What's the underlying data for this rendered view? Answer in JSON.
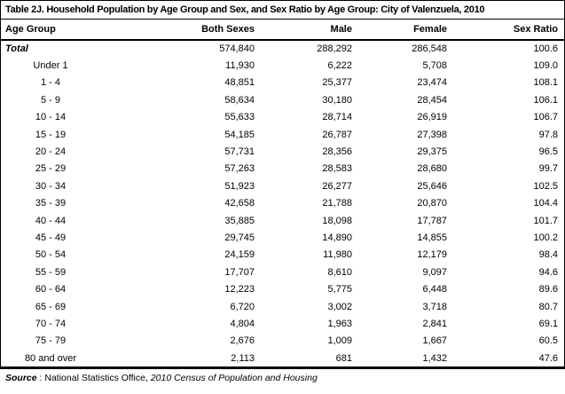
{
  "colors": {
    "text": "#000000",
    "border": "#000000",
    "background": "#ffffff"
  },
  "table": {
    "title": "Table 2J. Household Population by Age Group and Sex, and Sex Ratio by Age Group: City of Valenzuela, 2010",
    "columns": [
      "Age Group",
      "Both Sexes",
      "Male",
      "Female",
      "Sex Ratio"
    ],
    "total_row": {
      "label": "Total",
      "both_sexes": "574,840",
      "male": "288,292",
      "female": "286,548",
      "sex_ratio": "100.6"
    },
    "rows": [
      {
        "age_group": "Under 1",
        "both_sexes": "11,930",
        "male": "6,222",
        "female": "5,708",
        "sex_ratio": "109.0"
      },
      {
        "age_group": "1 - 4",
        "both_sexes": "48,851",
        "male": "25,377",
        "female": "23,474",
        "sex_ratio": "108.1"
      },
      {
        "age_group": "5 - 9",
        "both_sexes": "58,634",
        "male": "30,180",
        "female": "28,454",
        "sex_ratio": "106.1"
      },
      {
        "age_group": "10 - 14",
        "both_sexes": "55,633",
        "male": "28,714",
        "female": "26,919",
        "sex_ratio": "106.7"
      },
      {
        "age_group": "15 - 19",
        "both_sexes": "54,185",
        "male": "26,787",
        "female": "27,398",
        "sex_ratio": "97.8"
      },
      {
        "age_group": "20 - 24",
        "both_sexes": "57,731",
        "male": "28,356",
        "female": "29,375",
        "sex_ratio": "96.5"
      },
      {
        "age_group": "25 - 29",
        "both_sexes": "57,263",
        "male": "28,583",
        "female": "28,680",
        "sex_ratio": "99.7"
      },
      {
        "age_group": "30 - 34",
        "both_sexes": "51,923",
        "male": "26,277",
        "female": "25,646",
        "sex_ratio": "102.5"
      },
      {
        "age_group": "35 - 39",
        "both_sexes": "42,658",
        "male": "21,788",
        "female": "20,870",
        "sex_ratio": "104.4"
      },
      {
        "age_group": "40 - 44",
        "both_sexes": "35,885",
        "male": "18,098",
        "female": "17,787",
        "sex_ratio": "101.7"
      },
      {
        "age_group": "45 - 49",
        "both_sexes": "29,745",
        "male": "14,890",
        "female": "14,855",
        "sex_ratio": "100.2"
      },
      {
        "age_group": "50 - 54",
        "both_sexes": "24,159",
        "male": "11,980",
        "female": "12,179",
        "sex_ratio": "98.4"
      },
      {
        "age_group": "55 - 59",
        "both_sexes": "17,707",
        "male": "8,610",
        "female": "9,097",
        "sex_ratio": "94.6"
      },
      {
        "age_group": "60 - 64",
        "both_sexes": "12,223",
        "male": "5,775",
        "female": "6,448",
        "sex_ratio": "89.6"
      },
      {
        "age_group": "65 - 69",
        "both_sexes": "6,720",
        "male": "3,002",
        "female": "3,718",
        "sex_ratio": "80.7"
      },
      {
        "age_group": "70 - 74",
        "both_sexes": "4,804",
        "male": "1,963",
        "female": "2,841",
        "sex_ratio": "69.1"
      },
      {
        "age_group": "75 - 79",
        "both_sexes": "2,676",
        "male": "1,009",
        "female": "1,667",
        "sex_ratio": "60.5"
      },
      {
        "age_group": "80 and over",
        "both_sexes": "2,113",
        "male": "681",
        "female": "1,432",
        "sex_ratio": "47.6"
      }
    ],
    "source": {
      "label": "Source",
      "separator": " : ",
      "text": "National Statistics Office, ",
      "citation": "2010 Census of Population and Housing"
    }
  },
  "chart_data": {
    "type": "table",
    "title": "Table 2J. Household Population by Age Group and Sex, and Sex Ratio by Age Group: City of Valenzuela, 2010",
    "categories": [
      "Total",
      "Under 1",
      "1 - 4",
      "5 - 9",
      "10 - 14",
      "15 - 19",
      "20 - 24",
      "25 - 29",
      "30 - 34",
      "35 - 39",
      "40 - 44",
      "45 - 49",
      "50 - 54",
      "55 - 59",
      "60 - 64",
      "65 - 69",
      "70 - 74",
      "75 - 79",
      "80 and over"
    ],
    "series": [
      {
        "name": "Both Sexes",
        "values": [
          574840,
          11930,
          48851,
          58634,
          55633,
          54185,
          57731,
          57263,
          51923,
          42658,
          35885,
          29745,
          24159,
          17707,
          12223,
          6720,
          4804,
          2676,
          2113
        ]
      },
      {
        "name": "Male",
        "values": [
          288292,
          6222,
          25377,
          30180,
          28714,
          26787,
          28356,
          28583,
          26277,
          21788,
          18098,
          14890,
          11980,
          8610,
          5775,
          3002,
          1963,
          1009,
          681
        ]
      },
      {
        "name": "Female",
        "values": [
          286548,
          5708,
          23474,
          28454,
          26919,
          27398,
          29375,
          28680,
          25646,
          20870,
          17787,
          14855,
          12179,
          9097,
          6448,
          3718,
          2841,
          1667,
          1432
        ]
      },
      {
        "name": "Sex Ratio",
        "values": [
          100.6,
          109.0,
          108.1,
          106.1,
          106.7,
          97.8,
          96.5,
          99.7,
          102.5,
          104.4,
          101.7,
          100.2,
          98.4,
          94.6,
          89.6,
          80.7,
          69.1,
          60.5,
          47.6
        ]
      }
    ]
  }
}
